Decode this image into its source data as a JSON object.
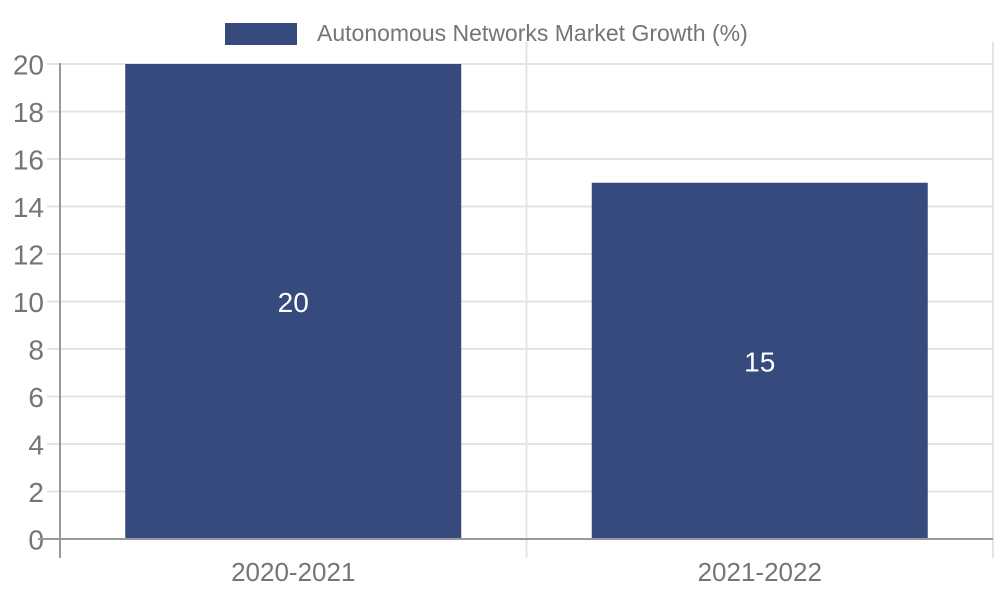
{
  "chart_data": {
    "type": "bar",
    "title": "",
    "series_name": "Autonomous Networks Market Growth (%)",
    "categories": [
      "2020-2021",
      "2021-2022"
    ],
    "values": [
      20,
      15
    ],
    "value_labels": [
      "20",
      "15"
    ],
    "xlabel": "",
    "ylabel": "",
    "ylim": [
      0,
      20
    ],
    "yticks": [
      0,
      2,
      4,
      6,
      8,
      10,
      12,
      14,
      16,
      18,
      20
    ],
    "grid": true,
    "legend_position": "top",
    "colors": {
      "bar": "#364A7E",
      "value_label": "#FFFFFF",
      "axis_text": "#757575",
      "legend_text": "#757575",
      "gridline": "#E4E4E4",
      "tick": "#C6C6C6",
      "axis_line": "#999999",
      "background": "#FFFFFF"
    }
  }
}
